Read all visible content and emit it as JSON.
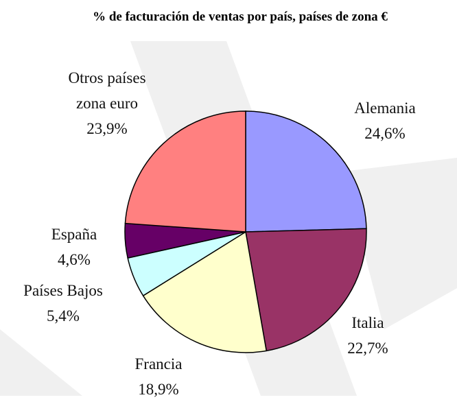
{
  "chart_data": {
    "type": "pie",
    "title": "% de facturación de ventas por país, países de zona €",
    "categories": [
      "Alemania",
      "Italia",
      "Francia",
      "Países Bajos",
      "España",
      "Otros países zona euro"
    ],
    "values": [
      24.6,
      22.7,
      18.9,
      5.4,
      4.6,
      23.9
    ],
    "value_labels": [
      "24,6%",
      "22,7%",
      "18,9%",
      "5,4%",
      "4,6%",
      "23,9%"
    ],
    "colors": [
      "#9999ff",
      "#993366",
      "#ffffcc",
      "#ccffff",
      "#660066",
      "#ff8080"
    ]
  }
}
